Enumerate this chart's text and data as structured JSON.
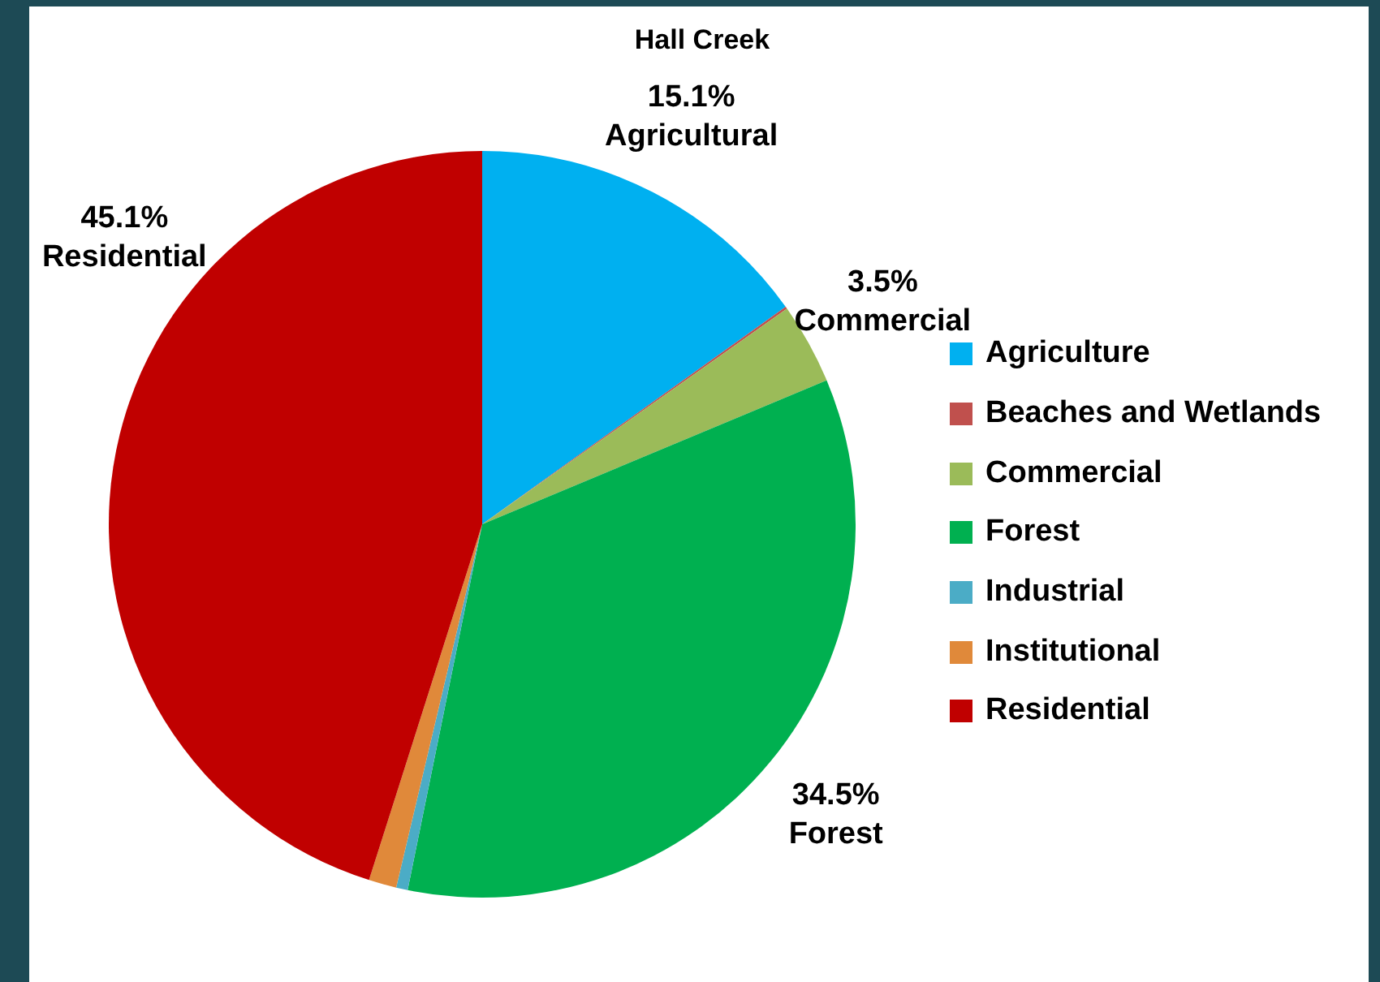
{
  "chart_data": {
    "type": "pie",
    "title": "Hall Creek",
    "categories": [
      "Agriculture",
      "Beaches and Wetlands",
      "Commercial",
      "Forest",
      "Industrial",
      "Institutional",
      "Residential"
    ],
    "values": [
      15.1,
      0.1,
      3.5,
      34.5,
      0.5,
      1.2,
      45.1
    ],
    "colors": [
      "#00b0f0",
      "#c0504d",
      "#9bbb59",
      "#00b050",
      "#4bacc6",
      "#e0893a",
      "#c00000"
    ],
    "value_labels": [
      "15.1%\nAgricultural",
      null,
      "3.5%\nCommercial",
      "34.5%\nForest",
      null,
      null,
      "45.1%\nResidential"
    ],
    "legend": "right"
  }
}
